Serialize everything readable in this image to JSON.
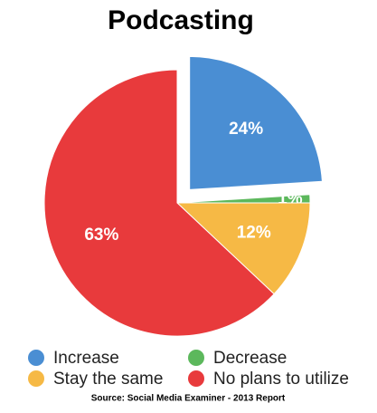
{
  "chart_data": {
    "type": "pie",
    "title": "Podcasting",
    "categories": [
      "Increase",
      "Decrease",
      "Stay the same",
      "No plans to utilize"
    ],
    "values": [
      24,
      1,
      12,
      63
    ],
    "value_labels": [
      "24%",
      "1%",
      "12%",
      "63%"
    ],
    "colors": [
      "#4a8ed3",
      "#5cb85c",
      "#f6b945",
      "#e83a3c"
    ],
    "source": "Source: Social Media Examiner - 2013 Report"
  }
}
